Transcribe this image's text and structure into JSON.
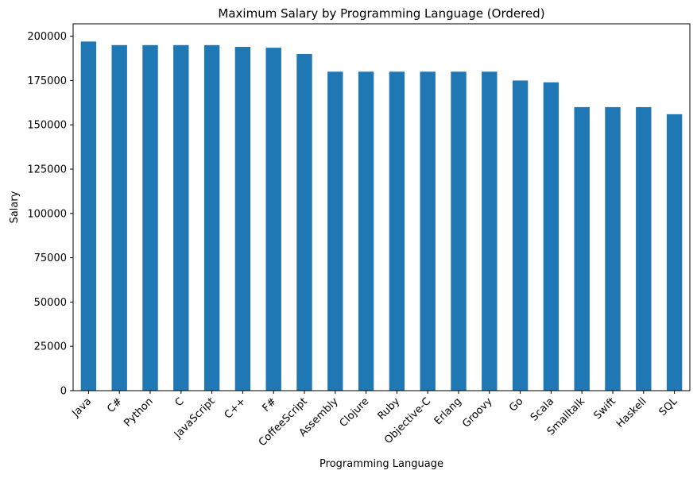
{
  "chart_data": {
    "type": "bar",
    "title": "Maximum Salary by Programming Language (Ordered)",
    "xlabel": "Programming Language",
    "ylabel": "Salary",
    "ylim": [
      0,
      207000
    ],
    "yticks": [
      0,
      25000,
      50000,
      75000,
      100000,
      125000,
      150000,
      175000,
      200000
    ],
    "categories": [
      "Java",
      "C#",
      "Python",
      "C",
      "JavaScript",
      "C++",
      "F#",
      "CoffeeScript",
      "Assembly",
      "Clojure",
      "Ruby",
      "Objective-C",
      "Erlang",
      "Groovy",
      "Go",
      "Scala",
      "Smalltalk",
      "Swift",
      "Haskell",
      "SQL"
    ],
    "values": [
      197000,
      195000,
      195000,
      195000,
      195000,
      194000,
      193500,
      190000,
      180000,
      180000,
      180000,
      180000,
      180000,
      180000,
      175000,
      174000,
      160000,
      160000,
      160000,
      156000
    ],
    "bar_color": "#1f77b4",
    "grid": false,
    "legend": "none"
  }
}
